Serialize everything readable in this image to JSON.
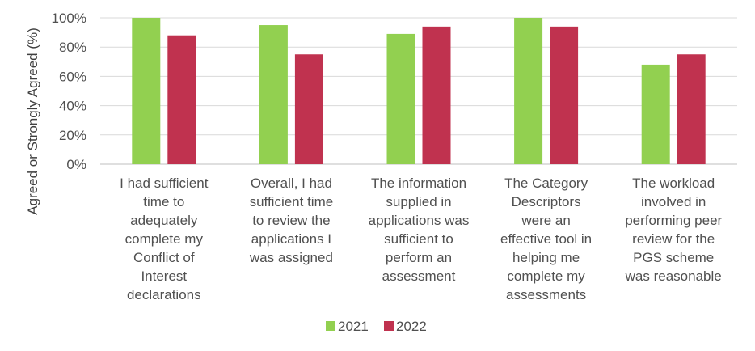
{
  "chart_data": {
    "type": "bar",
    "categories": [
      [
        "I had sufficient",
        "time to",
        "adequately",
        "complete my",
        "Conflict of",
        "Interest",
        "declarations"
      ],
      [
        "Overall, I had",
        "sufficient time",
        "to review the",
        "applications I",
        "was assigned"
      ],
      [
        "The information",
        "supplied in",
        "applications was",
        "sufficient to",
        "perform an",
        "assessment"
      ],
      [
        "The Category",
        "Descriptors",
        "were an",
        "effective tool in",
        "helping me",
        "complete my",
        "assessments"
      ],
      [
        "The workload",
        "involved in",
        "performing peer",
        "review for the",
        "PGS scheme",
        "was reasonable"
      ]
    ],
    "series": [
      {
        "name": "2021",
        "color": "#92d050",
        "values": [
          100,
          95,
          89,
          100,
          68
        ]
      },
      {
        "name": "2022",
        "color": "#c0324f",
        "values": [
          88,
          75,
          94,
          94,
          75
        ]
      }
    ],
    "ylabel": "Agreed or Strongly Agreed (%)",
    "ylim": [
      0,
      100
    ],
    "yticks": [
      "0%",
      "20%",
      "40%",
      "60%",
      "80%",
      "100%"
    ],
    "grid": true,
    "legend": "bottom"
  }
}
